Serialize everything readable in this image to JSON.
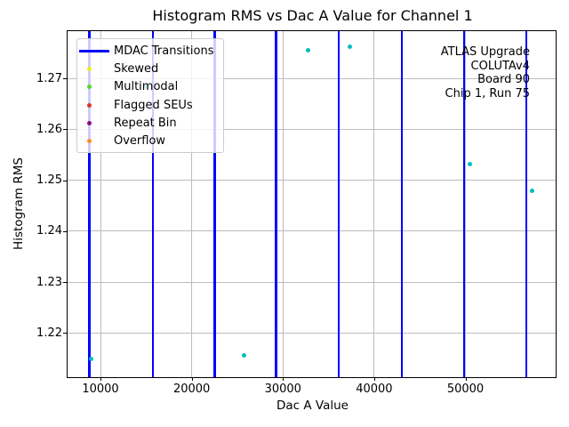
{
  "figure": {
    "title": "Histogram RMS vs Dac A Value for Channel 1",
    "xlabel": "Dac A Value",
    "ylabel": "Histogram RMS"
  },
  "annotation": {
    "lines": [
      "ATLAS Upgrade",
      "COLUTAv4",
      "Board 90",
      "Chip 1, Run 75"
    ]
  },
  "legend": {
    "items": [
      {
        "label": "MDAC Transitions",
        "marker": "line",
        "color": "#0000ff"
      },
      {
        "label": "Skewed",
        "marker": "dot",
        "color": "#eded1f"
      },
      {
        "label": "Multimodal",
        "marker": "dot",
        "color": "#54d62a"
      },
      {
        "label": "Flagged SEUs",
        "marker": "dot",
        "color": "#e0332c"
      },
      {
        "label": "Repeat Bin",
        "marker": "dot",
        "color": "#870d87"
      },
      {
        "label": "Overflow",
        "marker": "dot",
        "color": "#ff8e24"
      }
    ]
  },
  "chart_data": {
    "type": "scatter",
    "title": "Histogram RMS vs Dac A Value for Channel 1",
    "xlabel": "Dac A Value",
    "ylabel": "Histogram RMS",
    "xlim": [
      6390,
      59890
    ],
    "ylim": [
      1.2113,
      1.2793
    ],
    "x_ticks": [
      10000,
      20000,
      30000,
      40000,
      50000
    ],
    "y_ticks": [
      1.22,
      1.23,
      1.24,
      1.25,
      1.26,
      1.27
    ],
    "grid": true,
    "grid_color": "#bdbdbd",
    "legend_position": "upper left",
    "mdac_transition_color": "#0000ff",
    "mdac_transitions": [
      8770,
      15730,
      22530,
      29250,
      36120,
      43010,
      49870,
      56660
    ],
    "series": [
      {
        "name": "Histogram RMS points",
        "marker_color": "#00bfbf",
        "points": [
          [
            8930,
            1.2148
          ],
          [
            14980,
            1.2684
          ],
          [
            25760,
            1.2155
          ],
          [
            32780,
            1.2756
          ],
          [
            37340,
            1.2762
          ],
          [
            50450,
            1.2531
          ],
          [
            57340,
            1.248
          ]
        ]
      }
    ]
  }
}
